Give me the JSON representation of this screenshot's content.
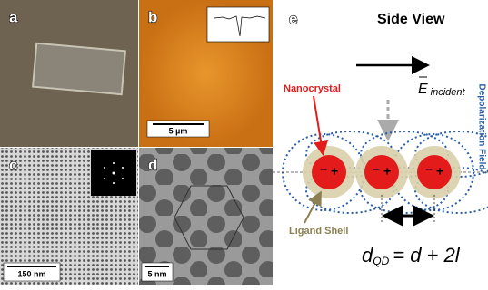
{
  "panels": {
    "a": "a",
    "b": "b",
    "c": "c",
    "d": "d",
    "e": "e"
  },
  "scale_bars": {
    "b": "5 µm",
    "c": "150 nm",
    "d": "5 nm"
  },
  "diagram": {
    "title": "Side View",
    "field_symbol": "E",
    "field_subscript": "incident",
    "nanocrystal": "Nanocrystal",
    "ligand_shell": "Ligand Shell",
    "depolarization": "Depolarization  Field",
    "minus": "−",
    "plus": "+",
    "formula": {
      "lhs": "d",
      "lhs_subscript": "QD",
      "rhs": "= d + 2l"
    }
  }
}
